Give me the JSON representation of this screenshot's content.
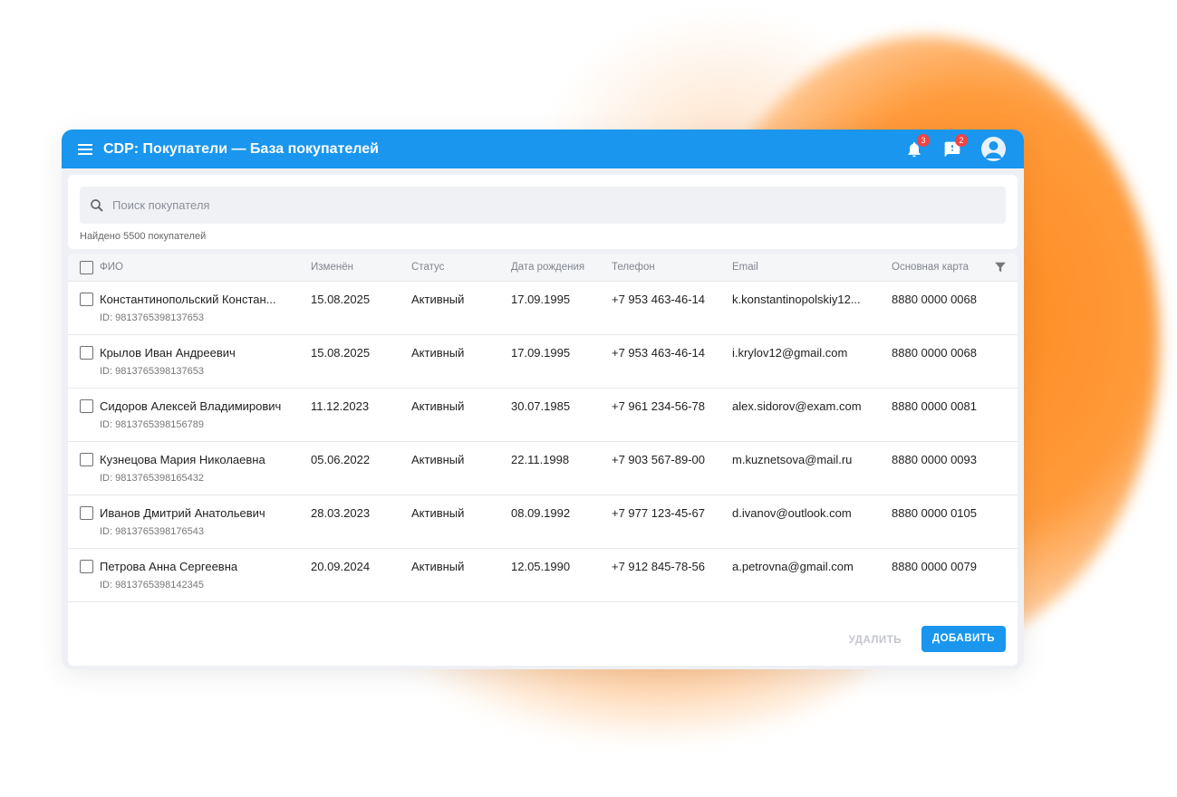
{
  "header": {
    "title": "CDP: Покупатели — База покупателей",
    "notifications_count": "3",
    "messages_count": "2"
  },
  "search": {
    "placeholder": "Поиск покупателя",
    "found": "Найдено 5500 покупателей"
  },
  "table": {
    "columns": [
      "ФИО",
      "Изменён",
      "Статус",
      "Дата рождения",
      "Телефон",
      "Email",
      "Основная карта"
    ],
    "rows": [
      {
        "name": "Константинопольский Констан...",
        "id": "ID: 9813765398137653",
        "changed": "15.08.2025",
        "status": "Активный",
        "birth": "17.09.1995",
        "phone": "+7 953 463-46-14",
        "email": "k.konstantinopolskiy12...",
        "card": "8880 0000 0068"
      },
      {
        "name": "Крылов Иван Андреевич",
        "id": "ID: 9813765398137653",
        "changed": "15.08.2025",
        "status": "Активный",
        "birth": "17.09.1995",
        "phone": "+7 953 463-46-14",
        "email": "i.krylov12@gmail.com",
        "card": "8880 0000 0068"
      },
      {
        "name": "Сидоров Алексей Владимирович",
        "id": "ID: 9813765398156789",
        "changed": "11.12.2023",
        "status": "Активный",
        "birth": "30.07.1985",
        "phone": "+7 961 234-56-78",
        "email": "alex.sidorov@exam.com",
        "card": "8880 0000 0081"
      },
      {
        "name": "Кузнецова Мария Николаевна",
        "id": "ID: 9813765398165432",
        "changed": "05.06.2022",
        "status": "Активный",
        "birth": "22.11.1998",
        "phone": "+7 903 567-89-00",
        "email": "m.kuznetsova@mail.ru",
        "card": "8880 0000 0093"
      },
      {
        "name": "Иванов Дмитрий Анатольевич",
        "id": "ID: 9813765398176543",
        "changed": "28.03.2023",
        "status": "Активный",
        "birth": "08.09.1992",
        "phone": "+7 977 123-45-67",
        "email": "d.ivanov@outlook.com",
        "card": "8880 0000 0105"
      },
      {
        "name": "Петрова Анна Сергеевна",
        "id": "ID: 9813765398142345",
        "changed": "20.09.2024",
        "status": "Активный",
        "birth": "12.05.1990",
        "phone": "+7 912 845-78-56",
        "email": "a.petrovna@gmail.com",
        "card": "8880 0000 0079"
      }
    ]
  },
  "actions": {
    "delete": "УДАЛИТЬ",
    "add": "ДОБАВИТЬ"
  },
  "colors": {
    "accent": "#1a96ee",
    "badge": "#ef4444",
    "decor": "#ff8a1f"
  }
}
